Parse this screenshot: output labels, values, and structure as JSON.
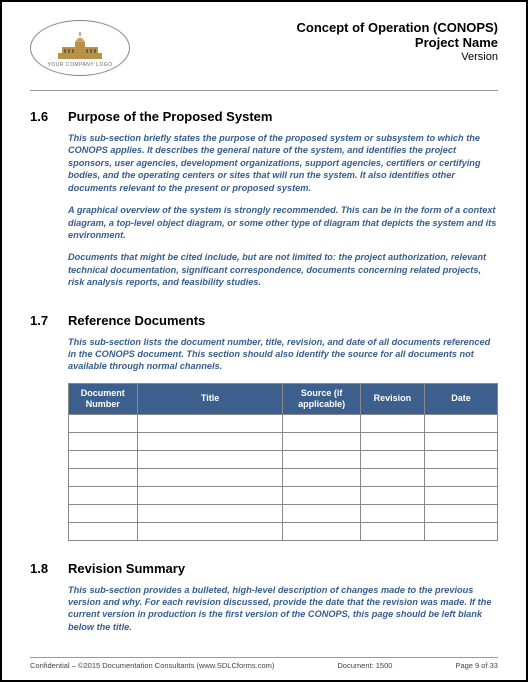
{
  "header": {
    "logo_caption": "YOUR COMPANY LOGO",
    "doc_title": "Concept of Operation (CONOPS)",
    "project_name": "Project Name",
    "version_label": "Version"
  },
  "sections": {
    "s16": {
      "num": "1.6",
      "title": "Purpose of the Proposed System",
      "p1": "This sub-section briefly states the purpose of the proposed system or subsystem to which the CONOPS applies. It describes the general nature of the system, and identifies the project sponsors, user agencies, development organizations, support agencies, certifiers or certifying bodies, and the operating centers or sites that will run the system. It also identifies other documents relevant to the present or proposed system.",
      "p2": "A graphical overview of the system is strongly recommended. This can be in the form of a context diagram, a top-level object diagram, or some other type of diagram that depicts the system and its environment.",
      "p3": "Documents that might be cited include, but are not limited to: the project authorization, relevant technical documentation, significant correspondence, documents concerning related projects, risk analysis reports, and feasibility studies."
    },
    "s17": {
      "num": "1.7",
      "title": "Reference Documents",
      "p1": "This sub-section lists the document number, title, revision, and date of all documents referenced in the CONOPS document. This section should also identify the source for all documents not available through normal channels."
    },
    "s18": {
      "num": "1.8",
      "title": "Revision Summary",
      "p1": "This sub-section provides a bulleted, high-level description of changes made to the previous version and why. For each revision discussed, provide the date that the revision was made. If the current version in production is the first version of the CONOPS, this page should be left blank below the title."
    }
  },
  "ref_table": {
    "columns": [
      "Document Number",
      "Title",
      "Source (if applicable)",
      "Revision",
      "Date"
    ],
    "row_count": 7,
    "header_bg": "#3c5f8d",
    "header_fg": "#ffffff"
  },
  "footer": {
    "left": "Confidential – ©2015 Documentation Consultants (www.SDLCforms.com)",
    "center": "Document: 1500",
    "right": "Page 9 of 33"
  },
  "colors": {
    "body_text": "#355e8f",
    "rule": "#999999"
  }
}
